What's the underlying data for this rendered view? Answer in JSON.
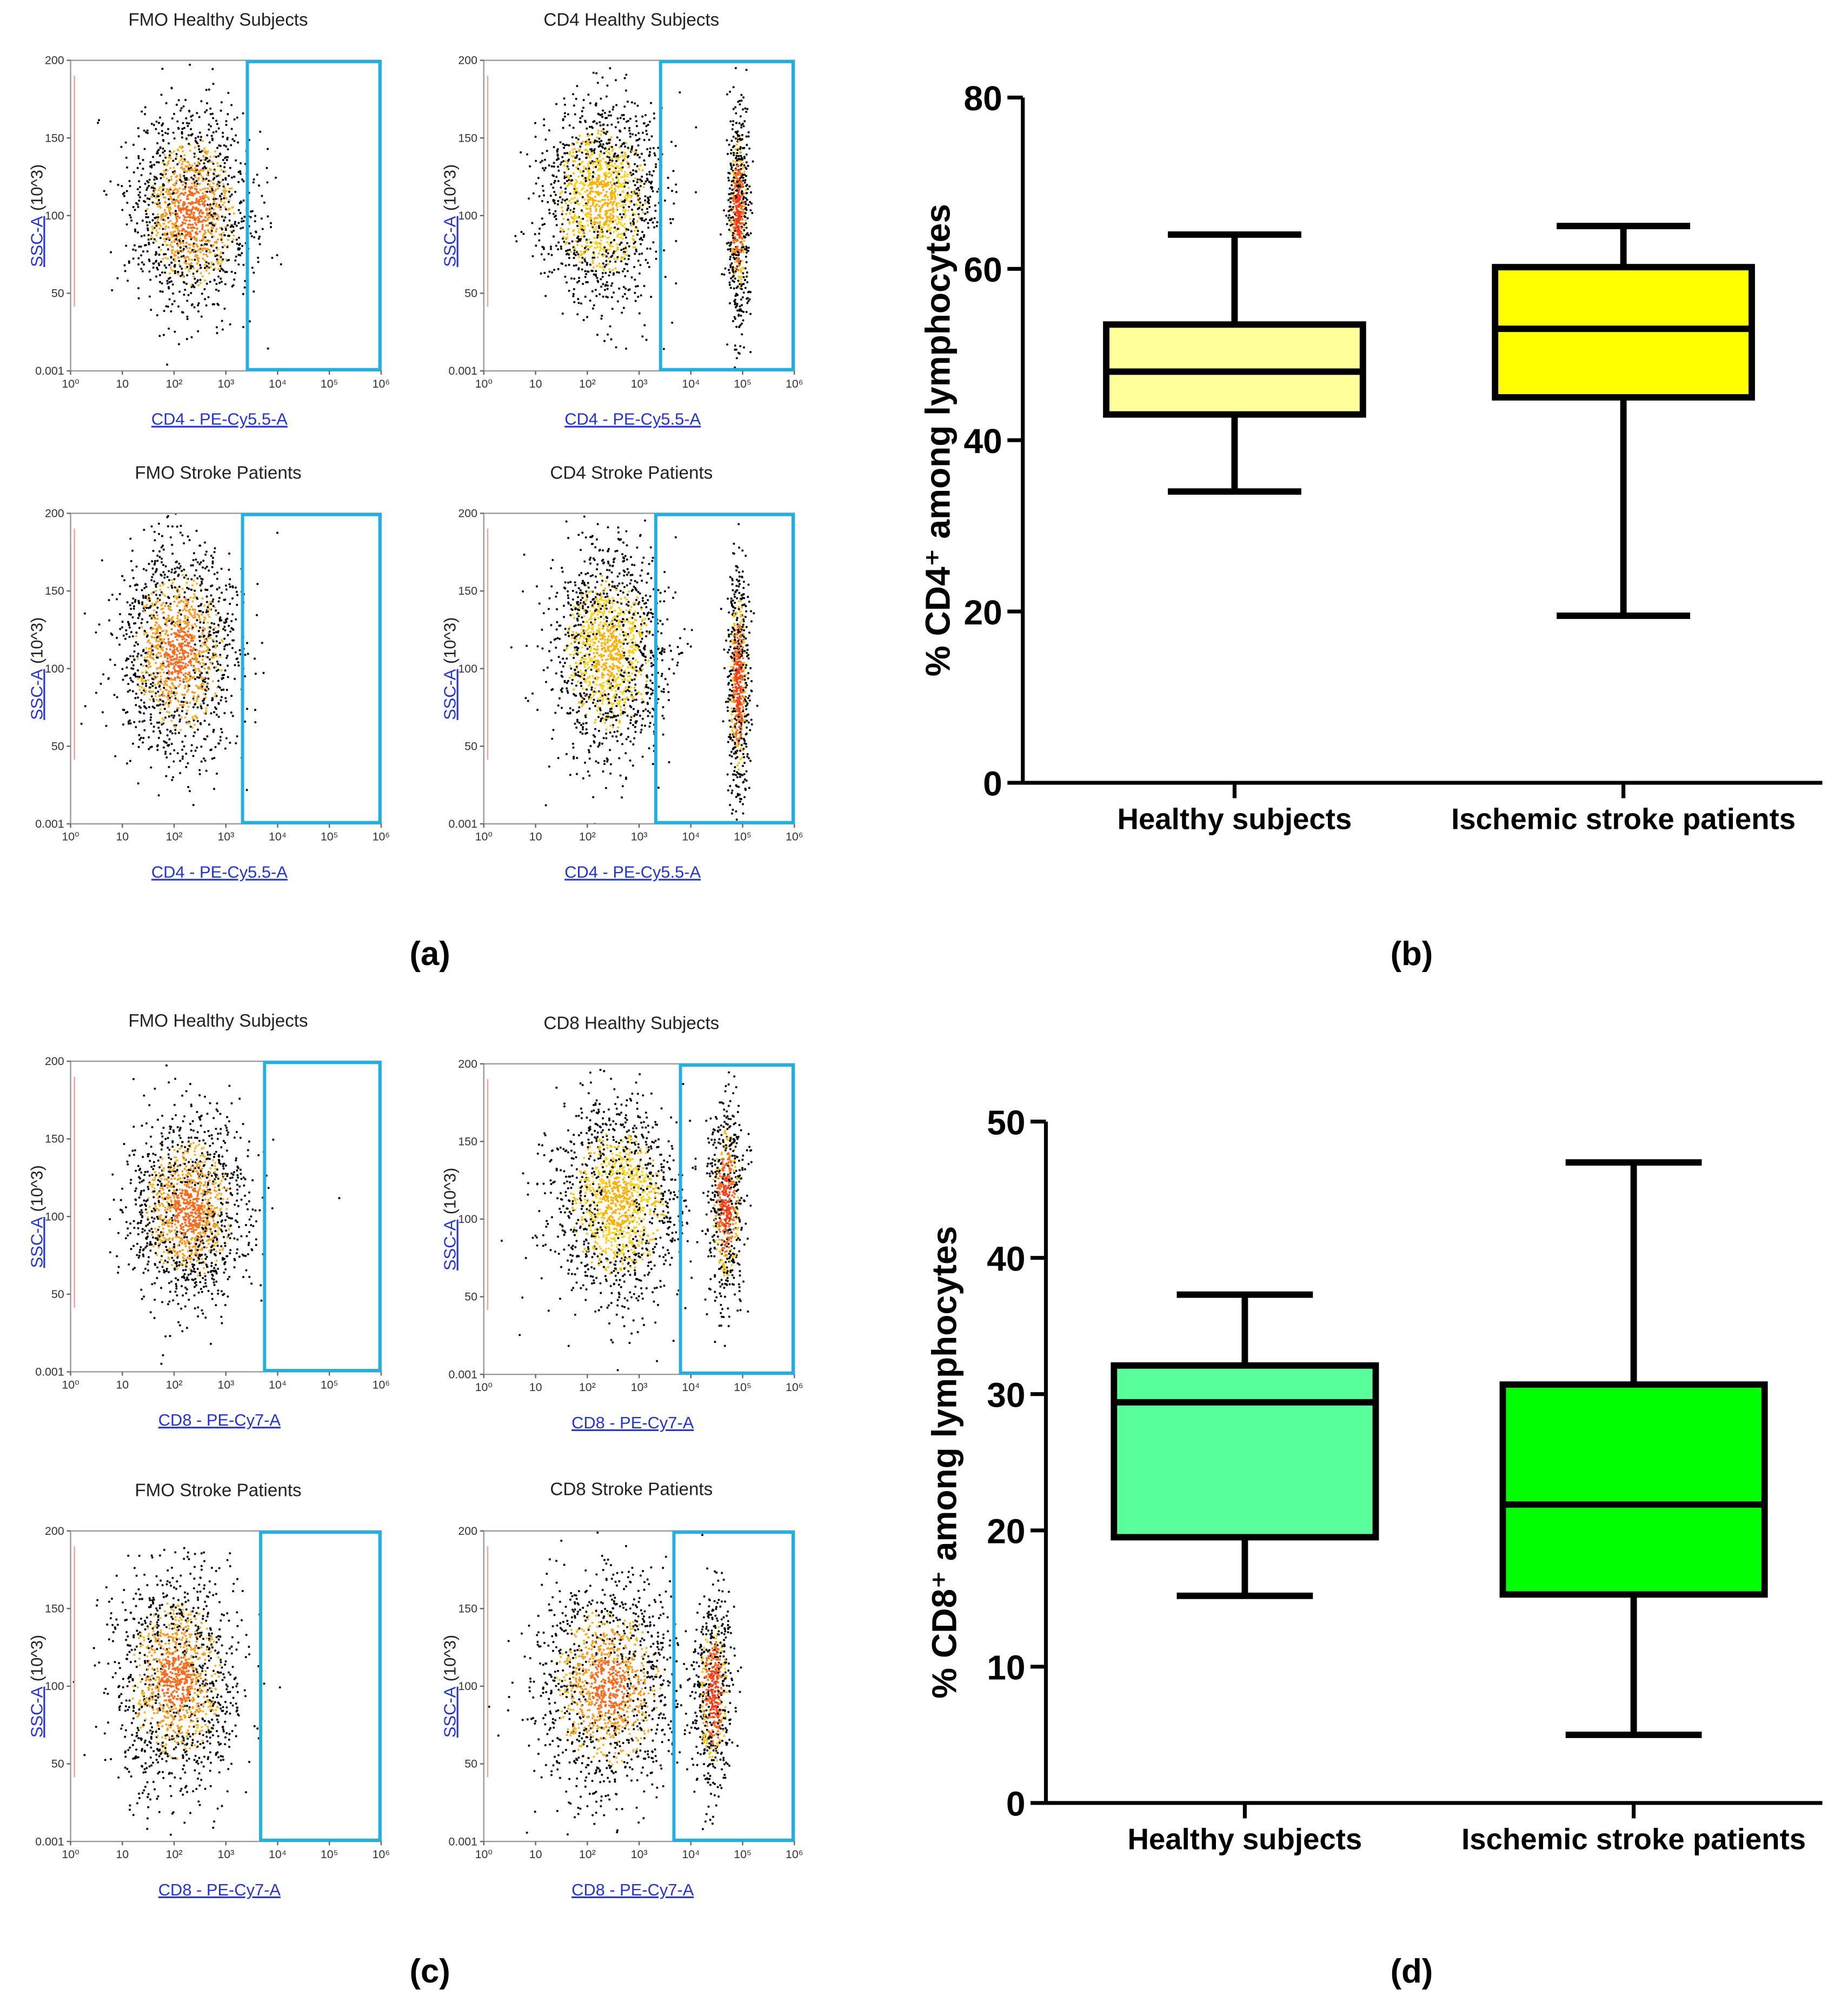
{
  "panel_labels": [
    "(a)",
    "(b)",
    "(c)",
    "(d)"
  ],
  "chart_data": [
    {
      "type": "flow",
      "title": "FMO Healthy Subjects",
      "xlabel": "CD4 - PE-Cy5.5-A",
      "ylabel": "SSC-A",
      "yunit": "(10^3)",
      "xscale": "log",
      "xlim": [
        1,
        1000000
      ],
      "xticks": [
        {
          "value": 1,
          "label": "10⁰"
        },
        10,
        {
          "value": 100,
          "label": "10²"
        },
        {
          "value": 1000,
          "label": "10³"
        },
        {
          "value": 10000,
          "label": "10⁴"
        },
        {
          "value": 100000,
          "label": "10⁵"
        },
        {
          "value": 1000000,
          "label": "10⁶"
        }
      ],
      "ylim": [
        0.001,
        200
      ],
      "yticks": [
        0.001,
        50,
        100,
        150,
        200
      ],
      "gate": [
        2600,
        1000000
      ]
    },
    {
      "type": "flow",
      "title": "CD4 Healthy Subjects",
      "xlabel": "CD4 - PE-Cy5.5-A",
      "ylabel": "SSC-A",
      "yunit": "(10^3)",
      "xscale": "log",
      "xlim": [
        1,
        1000000
      ],
      "xticks": [
        {
          "value": 1,
          "label": "10⁰"
        },
        10,
        {
          "value": 100,
          "label": "10²"
        },
        {
          "value": 1000,
          "label": "10³"
        },
        {
          "value": 10000,
          "label": "10⁴"
        },
        {
          "value": 100000,
          "label": "10⁵"
        },
        {
          "value": 1000000,
          "label": "10⁶"
        }
      ],
      "ylim": [
        0.001,
        200
      ],
      "yticks": [
        0.001,
        50,
        100,
        150,
        200
      ],
      "gate": [
        2600,
        1000000
      ]
    },
    {
      "type": "flow",
      "title": "FMO Stroke Patients",
      "xlabel": "CD4 - PE-Cy5.5-A",
      "ylabel": "SSC-A",
      "yunit": "(10^3)",
      "xscale": "log",
      "xlim": [
        1,
        1000000
      ],
      "xticks": [
        {
          "value": 1,
          "label": "10⁰"
        },
        10,
        {
          "value": 100,
          "label": "10²"
        },
        {
          "value": 1000,
          "label": "10³"
        },
        {
          "value": 10000,
          "label": "10⁴"
        },
        {
          "value": 100000,
          "label": "10⁵"
        },
        {
          "value": 1000000,
          "label": "10⁶"
        }
      ],
      "ylim": [
        0.001,
        200
      ],
      "yticks": [
        0.001,
        50,
        100,
        150,
        200
      ],
      "gate": [
        2100,
        1000000
      ]
    },
    {
      "type": "flow",
      "title": "CD4 Stroke Patients",
      "xlabel": "CD4 - PE-Cy5.5-A",
      "ylabel": "SSC-A",
      "yunit": "(10^3)",
      "xscale": "log",
      "xlim": [
        1,
        1000000
      ],
      "xticks": [
        {
          "value": 1,
          "label": "10⁰"
        },
        10,
        {
          "value": 100,
          "label": "10²"
        },
        {
          "value": 1000,
          "label": "10³"
        },
        {
          "value": 10000,
          "label": "10⁴"
        },
        {
          "value": 100000,
          "label": "10⁵"
        },
        {
          "value": 1000000,
          "label": "10⁶"
        }
      ],
      "ylim": [
        0.001,
        200
      ],
      "yticks": [
        0.001,
        50,
        100,
        150,
        200
      ],
      "gate": [
        2100,
        1000000
      ]
    },
    {
      "type": "box",
      "ylabel": "% CD4⁺ among lymphocytes",
      "categories": [
        "Healthy subjects",
        "Ischemic stroke patients"
      ],
      "colors": [
        "#ffff99",
        "#ffff00"
      ],
      "min": [
        34,
        19.5
      ],
      "q1": [
        43,
        45
      ],
      "median": [
        48,
        53
      ],
      "q3": [
        53.5,
        60.2
      ],
      "max": [
        64,
        65
      ],
      "ylim": [
        0,
        80
      ],
      "yticks": [
        0,
        20,
        40,
        60,
        80
      ]
    },
    {
      "type": "flow",
      "title": "FMO Healthy Subjects",
      "xlabel": "CD8 - PE-Cy7-A",
      "ylabel": "SSC-A",
      "yunit": "(10^3)",
      "xscale": "log",
      "xlim": [
        1,
        1000000
      ],
      "xticks": [
        {
          "value": 1,
          "label": "10⁰"
        },
        10,
        {
          "value": 100,
          "label": "10²"
        },
        {
          "value": 1000,
          "label": "10³"
        },
        {
          "value": 10000,
          "label": "10⁴"
        },
        {
          "value": 100000,
          "label": "10⁵"
        },
        {
          "value": 1000000,
          "label": "10⁶"
        }
      ],
      "ylim": [
        0.001,
        200
      ],
      "yticks": [
        0.001,
        50,
        100,
        150,
        200
      ],
      "gate": [
        5600,
        1000000
      ]
    },
    {
      "type": "flow",
      "title": "CD8 Healthy Subjects",
      "xlabel": "CD8 - PE-Cy7-A",
      "ylabel": "SSC-A",
      "yunit": "(10^3)",
      "xscale": "log",
      "xlim": [
        1,
        1000000
      ],
      "xticks": [
        {
          "value": 1,
          "label": "10⁰"
        },
        10,
        {
          "value": 100,
          "label": "10²"
        },
        {
          "value": 1000,
          "label": "10³"
        },
        {
          "value": 10000,
          "label": "10⁴"
        },
        {
          "value": 100000,
          "label": "10⁵"
        },
        {
          "value": 1000000,
          "label": "10⁶"
        }
      ],
      "ylim": [
        0.001,
        200
      ],
      "yticks": [
        0.001,
        50,
        100,
        150,
        200
      ],
      "gate": [
        6300,
        1000000
      ]
    },
    {
      "type": "flow",
      "title": "FMO Stroke Patients",
      "xlabel": "CD8 - PE-Cy7-A",
      "ylabel": "SSC-A",
      "yunit": "(10^3)",
      "xscale": "log",
      "xlim": [
        1,
        1000000
      ],
      "xticks": [
        {
          "value": 1,
          "label": "10⁰"
        },
        10,
        {
          "value": 100,
          "label": "10²"
        },
        {
          "value": 1000,
          "label": "10³"
        },
        {
          "value": 10000,
          "label": "10⁴"
        },
        {
          "value": 100000,
          "label": "10⁵"
        },
        {
          "value": 1000000,
          "label": "10⁶"
        }
      ],
      "ylim": [
        0.001,
        200
      ],
      "yticks": [
        0.001,
        50,
        100,
        150,
        200
      ],
      "gate": [
        4700,
        1000000
      ]
    },
    {
      "type": "flow",
      "title": "CD8 Stroke Patients",
      "xlabel": "CD8 - PE-Cy7-A",
      "ylabel": "SSC-A",
      "yunit": "(10^3)",
      "xscale": "log",
      "xlim": [
        1,
        1000000
      ],
      "xticks": [
        {
          "value": 1,
          "label": "10⁰"
        },
        10,
        {
          "value": 100,
          "label": "10²"
        },
        {
          "value": 1000,
          "label": "10³"
        },
        {
          "value": 10000,
          "label": "10⁴"
        },
        {
          "value": 100000,
          "label": "10⁵"
        },
        {
          "value": 1000000,
          "label": "10⁶"
        }
      ],
      "ylim": [
        0.001,
        200
      ],
      "yticks": [
        0.001,
        50,
        100,
        150,
        200
      ],
      "gate": [
        4700,
        1000000
      ]
    },
    {
      "type": "box",
      "ylabel": "% CD8⁺ among lymphocytes",
      "categories": [
        "Healthy subjects",
        "Ischemic stroke patients"
      ],
      "colors": [
        "#59ff99",
        "#00ff00"
      ],
      "min": [
        15.2,
        5
      ],
      "q1": [
        19.5,
        15.3
      ],
      "median": [
        29.4,
        21.9
      ],
      "q3": [
        32.1,
        30.7
      ],
      "max": [
        37.3,
        47
      ],
      "ylim": [
        0,
        50
      ],
      "yticks": [
        0,
        10,
        20,
        30,
        40,
        50
      ]
    }
  ]
}
